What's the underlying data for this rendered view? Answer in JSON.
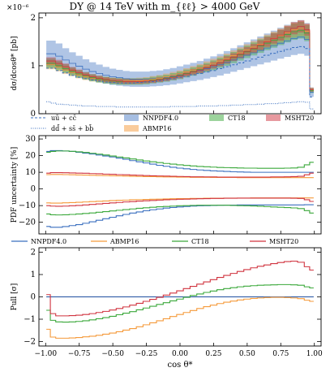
{
  "figure": {
    "title": "DY @ 14 TeV with m_{ℓℓ} > 4000 GeV"
  },
  "colors": {
    "NNPDF4.0": "#3a6fbf",
    "ABMP16": "#f59a3a",
    "CT18": "#3aa83a",
    "MSHT20": "#d0333f",
    "pull_zero_line": "#1f4fa0"
  },
  "legend_top": {
    "qq_label": "uū + cc̄",
    "sea_label": "dd̄ + ss̄ + bb̄",
    "pdf_sets": [
      "NNPDF4.0",
      "ABMP16",
      "CT18",
      "MSHT20"
    ]
  },
  "legend_mid": {
    "pdf_sets": [
      "NNPDF4.0",
      "ABMP16",
      "CT18",
      "MSHT20"
    ]
  },
  "chart_data": [
    {
      "type": "line",
      "panel": "cross-section",
      "ylabel": "dσ/dcosθ* [pb]",
      "scale_label": "×10⁻⁶",
      "ylim": [
        0,
        2.1
      ],
      "yticks": [
        0,
        1,
        2
      ],
      "x": [
        -0.98,
        -0.95,
        -0.9,
        -0.85,
        -0.8,
        -0.75,
        -0.7,
        -0.65,
        -0.6,
        -0.55,
        -0.5,
        -0.45,
        -0.4,
        -0.35,
        -0.3,
        -0.25,
        -0.2,
        -0.15,
        -0.1,
        -0.05,
        0.0,
        0.05,
        0.1,
        0.15,
        0.2,
        0.25,
        0.3,
        0.35,
        0.4,
        0.45,
        0.5,
        0.55,
        0.6,
        0.65,
        0.7,
        0.75,
        0.8,
        0.85,
        0.9,
        0.95,
        0.98
      ],
      "series": [
        {
          "name": "uū + cc̄",
          "style": "dashed",
          "values": [
            0.95,
            0.95,
            0.9,
            0.85,
            0.8,
            0.76,
            0.73,
            0.7,
            0.68,
            0.66,
            0.65,
            0.64,
            0.64,
            0.64,
            0.65,
            0.66,
            0.67,
            0.69,
            0.71,
            0.73,
            0.76,
            0.78,
            0.81,
            0.84,
            0.87,
            0.9,
            0.94,
            0.98,
            1.02,
            1.06,
            1.1,
            1.14,
            1.18,
            1.22,
            1.26,
            1.3,
            1.34,
            1.38,
            1.4,
            1.36,
            0.35
          ]
        },
        {
          "name": "dd̄ + ss̄ + bb̄",
          "style": "dotted",
          "values": [
            0.25,
            0.22,
            0.2,
            0.19,
            0.18,
            0.17,
            0.16,
            0.16,
            0.15,
            0.15,
            0.15,
            0.14,
            0.14,
            0.14,
            0.14,
            0.14,
            0.14,
            0.14,
            0.14,
            0.15,
            0.15,
            0.15,
            0.15,
            0.16,
            0.16,
            0.16,
            0.17,
            0.17,
            0.18,
            0.18,
            0.19,
            0.19,
            0.2,
            0.21,
            0.21,
            0.22,
            0.23,
            0.24,
            0.25,
            0.24,
            0.1
          ]
        },
        {
          "name": "NNPDF4.0",
          "central": [
            1.25,
            1.25,
            1.2,
            1.12,
            1.05,
            0.99,
            0.93,
            0.88,
            0.84,
            0.8,
            0.77,
            0.75,
            0.73,
            0.72,
            0.72,
            0.72,
            0.73,
            0.74,
            0.76,
            0.78,
            0.81,
            0.84,
            0.87,
            0.9,
            0.94,
            0.98,
            1.02,
            1.07,
            1.12,
            1.17,
            1.22,
            1.27,
            1.32,
            1.37,
            1.42,
            1.47,
            1.52,
            1.57,
            1.6,
            1.55,
            0.45
          ],
          "rel_unc": 0.22
        },
        {
          "name": "ABMP16",
          "central": [
            1.02,
            1.02,
            0.97,
            0.91,
            0.86,
            0.81,
            0.77,
            0.74,
            0.72,
            0.7,
            0.69,
            0.68,
            0.68,
            0.68,
            0.69,
            0.7,
            0.72,
            0.74,
            0.77,
            0.8,
            0.83,
            0.87,
            0.91,
            0.95,
            1.0,
            1.05,
            1.1,
            1.15,
            1.21,
            1.27,
            1.33,
            1.39,
            1.45,
            1.51,
            1.57,
            1.63,
            1.69,
            1.75,
            1.78,
            1.72,
            0.5
          ],
          "rel_unc": 0.09
        },
        {
          "name": "CT18",
          "central": [
            1.05,
            1.05,
            1.0,
            0.94,
            0.88,
            0.83,
            0.79,
            0.75,
            0.72,
            0.7,
            0.68,
            0.67,
            0.67,
            0.67,
            0.67,
            0.68,
            0.7,
            0.72,
            0.74,
            0.77,
            0.8,
            0.84,
            0.88,
            0.92,
            0.96,
            1.01,
            1.06,
            1.11,
            1.17,
            1.23,
            1.29,
            1.35,
            1.41,
            1.47,
            1.53,
            1.59,
            1.65,
            1.71,
            1.74,
            1.68,
            0.48
          ],
          "rel_unc": 0.1
        },
        {
          "name": "MSHT20",
          "central": [
            1.1,
            1.1,
            1.05,
            0.98,
            0.91,
            0.86,
            0.81,
            0.77,
            0.74,
            0.71,
            0.69,
            0.68,
            0.67,
            0.67,
            0.67,
            0.68,
            0.69,
            0.71,
            0.73,
            0.76,
            0.79,
            0.83,
            0.87,
            0.91,
            0.96,
            1.01,
            1.06,
            1.12,
            1.18,
            1.24,
            1.3,
            1.36,
            1.43,
            1.5,
            1.57,
            1.64,
            1.71,
            1.78,
            1.82,
            1.75,
            0.5
          ],
          "rel_unc": 0.07
        }
      ]
    },
    {
      "type": "line",
      "panel": "pdf-uncertainty",
      "ylabel": "PDF uncertainty [%]",
      "ylim": [
        -27,
        32
      ],
      "yticks": [
        -20,
        -10,
        0,
        10,
        20,
        30
      ],
      "x": [
        -0.98,
        -0.95,
        -0.9,
        -0.85,
        -0.8,
        -0.75,
        -0.7,
        -0.65,
        -0.6,
        -0.55,
        -0.5,
        -0.45,
        -0.4,
        -0.35,
        -0.3,
        -0.25,
        -0.2,
        -0.15,
        -0.1,
        -0.05,
        0.0,
        0.05,
        0.1,
        0.15,
        0.2,
        0.25,
        0.3,
        0.35,
        0.4,
        0.45,
        0.5,
        0.55,
        0.6,
        0.65,
        0.7,
        0.75,
        0.8,
        0.85,
        0.9,
        0.95,
        0.98
      ],
      "series": [
        {
          "name": "NNPDF4.0",
          "upper": [
            22.5,
            23.0,
            23.0,
            22.8,
            22.5,
            22.0,
            21.5,
            21.0,
            20.4,
            19.8,
            19.2,
            18.5,
            17.8,
            17.0,
            16.3,
            15.6,
            14.9,
            14.2,
            13.6,
            13.0,
            12.5,
            12.1,
            11.7,
            11.4,
            11.1,
            10.9,
            10.7,
            10.5,
            10.3,
            10.2,
            10.1,
            10.0,
            10.0,
            10.0,
            10.0,
            10.0,
            10.0,
            10.0,
            10.0,
            10.0,
            10.0
          ],
          "lower": [
            -22.5,
            -23.0,
            -23.0,
            -22.6,
            -22.0,
            -21.4,
            -20.6,
            -19.7,
            -18.8,
            -17.9,
            -17.0,
            -16.1,
            -15.3,
            -14.5,
            -13.8,
            -13.1,
            -12.5,
            -12.0,
            -11.5,
            -11.1,
            -10.8,
            -10.5,
            -10.3,
            -10.1,
            -10.0,
            -9.9,
            -9.8,
            -9.7,
            -9.7,
            -9.6,
            -9.6,
            -9.6,
            -9.6,
            -9.6,
            -9.6,
            -9.6,
            -9.6,
            -9.6,
            -9.6,
            -9.5,
            -9.5
          ]
        },
        {
          "name": "ABMP16",
          "upper": [
            8.6,
            8.7,
            8.7,
            8.6,
            8.5,
            8.4,
            8.3,
            8.2,
            8.1,
            8.0,
            7.9,
            7.8,
            7.7,
            7.6,
            7.5,
            7.4,
            7.4,
            7.3,
            7.2,
            7.2,
            7.1,
            7.1,
            7.0,
            7.0,
            7.0,
            6.9,
            6.9,
            6.9,
            6.9,
            6.8,
            6.8,
            6.8,
            6.8,
            6.8,
            6.8,
            6.8,
            6.8,
            6.8,
            6.8,
            6.8,
            6.8
          ],
          "lower": [
            -8.4,
            -8.5,
            -8.5,
            -8.3,
            -8.2,
            -8.0,
            -7.8,
            -7.6,
            -7.4,
            -7.2,
            -7.0,
            -6.8,
            -6.7,
            -6.5,
            -6.4,
            -6.3,
            -6.2,
            -6.1,
            -6.0,
            -5.9,
            -5.8,
            -5.8,
            -5.7,
            -5.7,
            -5.6,
            -5.6,
            -5.6,
            -5.5,
            -5.5,
            -5.5,
            -5.5,
            -5.4,
            -5.4,
            -5.4,
            -5.4,
            -5.4,
            -5.4,
            -5.4,
            -5.4,
            -5.4,
            -5.4
          ]
        },
        {
          "name": "CT18",
          "upper": [
            22.0,
            22.5,
            22.8,
            22.8,
            22.6,
            22.3,
            21.9,
            21.4,
            20.9,
            20.4,
            19.8,
            19.2,
            18.6,
            18.0,
            17.4,
            16.8,
            16.3,
            15.8,
            15.3,
            14.9,
            14.5,
            14.1,
            13.8,
            13.5,
            13.3,
            13.1,
            12.9,
            12.8,
            12.7,
            12.6,
            12.5,
            12.5,
            12.4,
            12.4,
            12.4,
            12.4,
            12.5,
            12.6,
            13.0,
            14.5,
            16.0
          ],
          "lower": [
            -15.0,
            -15.5,
            -15.6,
            -15.5,
            -15.3,
            -15.0,
            -14.7,
            -14.4,
            -14.0,
            -13.6,
            -13.2,
            -12.8,
            -12.4,
            -12.0,
            -11.6,
            -11.3,
            -11.0,
            -10.7,
            -10.5,
            -10.3,
            -10.1,
            -10.0,
            -9.9,
            -9.8,
            -9.8,
            -9.8,
            -9.8,
            -9.8,
            -9.9,
            -10.0,
            -10.1,
            -10.2,
            -10.4,
            -10.6,
            -10.8,
            -11.0,
            -11.2,
            -11.4,
            -11.8,
            -13.0,
            -14.5
          ]
        },
        {
          "name": "MSHT20",
          "upper": [
            9.5,
            9.8,
            9.8,
            9.7,
            9.6,
            9.5,
            9.4,
            9.2,
            9.1,
            8.9,
            8.8,
            8.6,
            8.5,
            8.3,
            8.2,
            8.0,
            7.9,
            7.8,
            7.7,
            7.6,
            7.5,
            7.4,
            7.3,
            7.3,
            7.2,
            7.2,
            7.1,
            7.1,
            7.1,
            7.1,
            7.1,
            7.1,
            7.1,
            7.1,
            7.2,
            7.2,
            7.3,
            7.4,
            7.6,
            8.5,
            9.5
          ],
          "lower": [
            -10.0,
            -10.3,
            -10.4,
            -10.3,
            -10.1,
            -9.9,
            -9.6,
            -9.3,
            -9.0,
            -8.7,
            -8.4,
            -8.1,
            -7.8,
            -7.6,
            -7.3,
            -7.1,
            -6.9,
            -6.7,
            -6.5,
            -6.4,
            -6.2,
            -6.1,
            -6.0,
            -5.9,
            -5.8,
            -5.7,
            -5.7,
            -5.6,
            -5.6,
            -5.5,
            -5.5,
            -5.5,
            -5.5,
            -5.5,
            -5.5,
            -5.5,
            -5.5,
            -5.6,
            -5.7,
            -6.5,
            -7.5
          ]
        }
      ]
    },
    {
      "type": "line",
      "panel": "pull",
      "ylabel": "Pull [σ]",
      "xlabel": "cos θ*",
      "ylim": [
        -2.2,
        2.2
      ],
      "yticks": [
        -2,
        -1,
        0,
        1,
        2
      ],
      "xlim": [
        -1.05,
        1.05
      ],
      "xticks": [
        -1.0,
        -0.75,
        -0.5,
        -0.25,
        0.0,
        0.25,
        0.5,
        0.75,
        1.0
      ],
      "xtick_labels": [
        "−1.00",
        "−0.75",
        "−0.50",
        "−0.25",
        "0.00",
        "0.25",
        "0.50",
        "0.75",
        "1.00"
      ],
      "x": [
        -0.98,
        -0.95,
        -0.9,
        -0.85,
        -0.8,
        -0.75,
        -0.7,
        -0.65,
        -0.6,
        -0.55,
        -0.5,
        -0.45,
        -0.4,
        -0.35,
        -0.3,
        -0.25,
        -0.2,
        -0.15,
        -0.1,
        -0.05,
        0.0,
        0.05,
        0.1,
        0.15,
        0.2,
        0.25,
        0.3,
        0.35,
        0.4,
        0.45,
        0.5,
        0.55,
        0.6,
        0.65,
        0.7,
        0.75,
        0.8,
        0.85,
        0.9,
        0.95,
        0.98
      ],
      "series": [
        {
          "name": "NNPDF4.0",
          "values": [
            0,
            0,
            0,
            0,
            0,
            0,
            0,
            0,
            0,
            0,
            0,
            0,
            0,
            0,
            0,
            0,
            0,
            0,
            0,
            0,
            0,
            0,
            0,
            0,
            0,
            0,
            0,
            0,
            0,
            0,
            0,
            0,
            0,
            0,
            0,
            0,
            0,
            0,
            0,
            0,
            0
          ]
        },
        {
          "name": "ABMP16",
          "values": [
            -1.45,
            -1.8,
            -1.85,
            -1.85,
            -1.84,
            -1.82,
            -1.79,
            -1.76,
            -1.72,
            -1.67,
            -1.62,
            -1.56,
            -1.49,
            -1.42,
            -1.34,
            -1.25,
            -1.16,
            -1.07,
            -0.98,
            -0.88,
            -0.79,
            -0.7,
            -0.61,
            -0.52,
            -0.44,
            -0.37,
            -0.3,
            -0.24,
            -0.19,
            -0.14,
            -0.1,
            -0.07,
            -0.05,
            -0.03,
            -0.02,
            -0.02,
            -0.03,
            -0.05,
            -0.08,
            -0.15,
            -0.2
          ]
        },
        {
          "name": "CT18",
          "values": [
            -0.6,
            -1.05,
            -1.12,
            -1.13,
            -1.12,
            -1.1,
            -1.07,
            -1.03,
            -0.98,
            -0.93,
            -0.87,
            -0.8,
            -0.73,
            -0.66,
            -0.58,
            -0.5,
            -0.42,
            -0.34,
            -0.26,
            -0.18,
            -0.1,
            -0.02,
            0.06,
            0.13,
            0.2,
            0.26,
            0.32,
            0.37,
            0.41,
            0.45,
            0.48,
            0.5,
            0.52,
            0.53,
            0.54,
            0.55,
            0.55,
            0.54,
            0.52,
            0.45,
            0.4
          ]
        },
        {
          "name": "MSHT20",
          "values": [
            0.1,
            -0.75,
            -0.85,
            -0.85,
            -0.84,
            -0.82,
            -0.79,
            -0.75,
            -0.7,
            -0.65,
            -0.59,
            -0.52,
            -0.45,
            -0.37,
            -0.29,
            -0.2,
            -0.11,
            -0.02,
            0.08,
            0.17,
            0.27,
            0.37,
            0.47,
            0.57,
            0.67,
            0.77,
            0.87,
            0.96,
            1.05,
            1.14,
            1.22,
            1.3,
            1.37,
            1.43,
            1.49,
            1.54,
            1.58,
            1.6,
            1.55,
            1.35,
            1.2
          ]
        }
      ]
    }
  ]
}
